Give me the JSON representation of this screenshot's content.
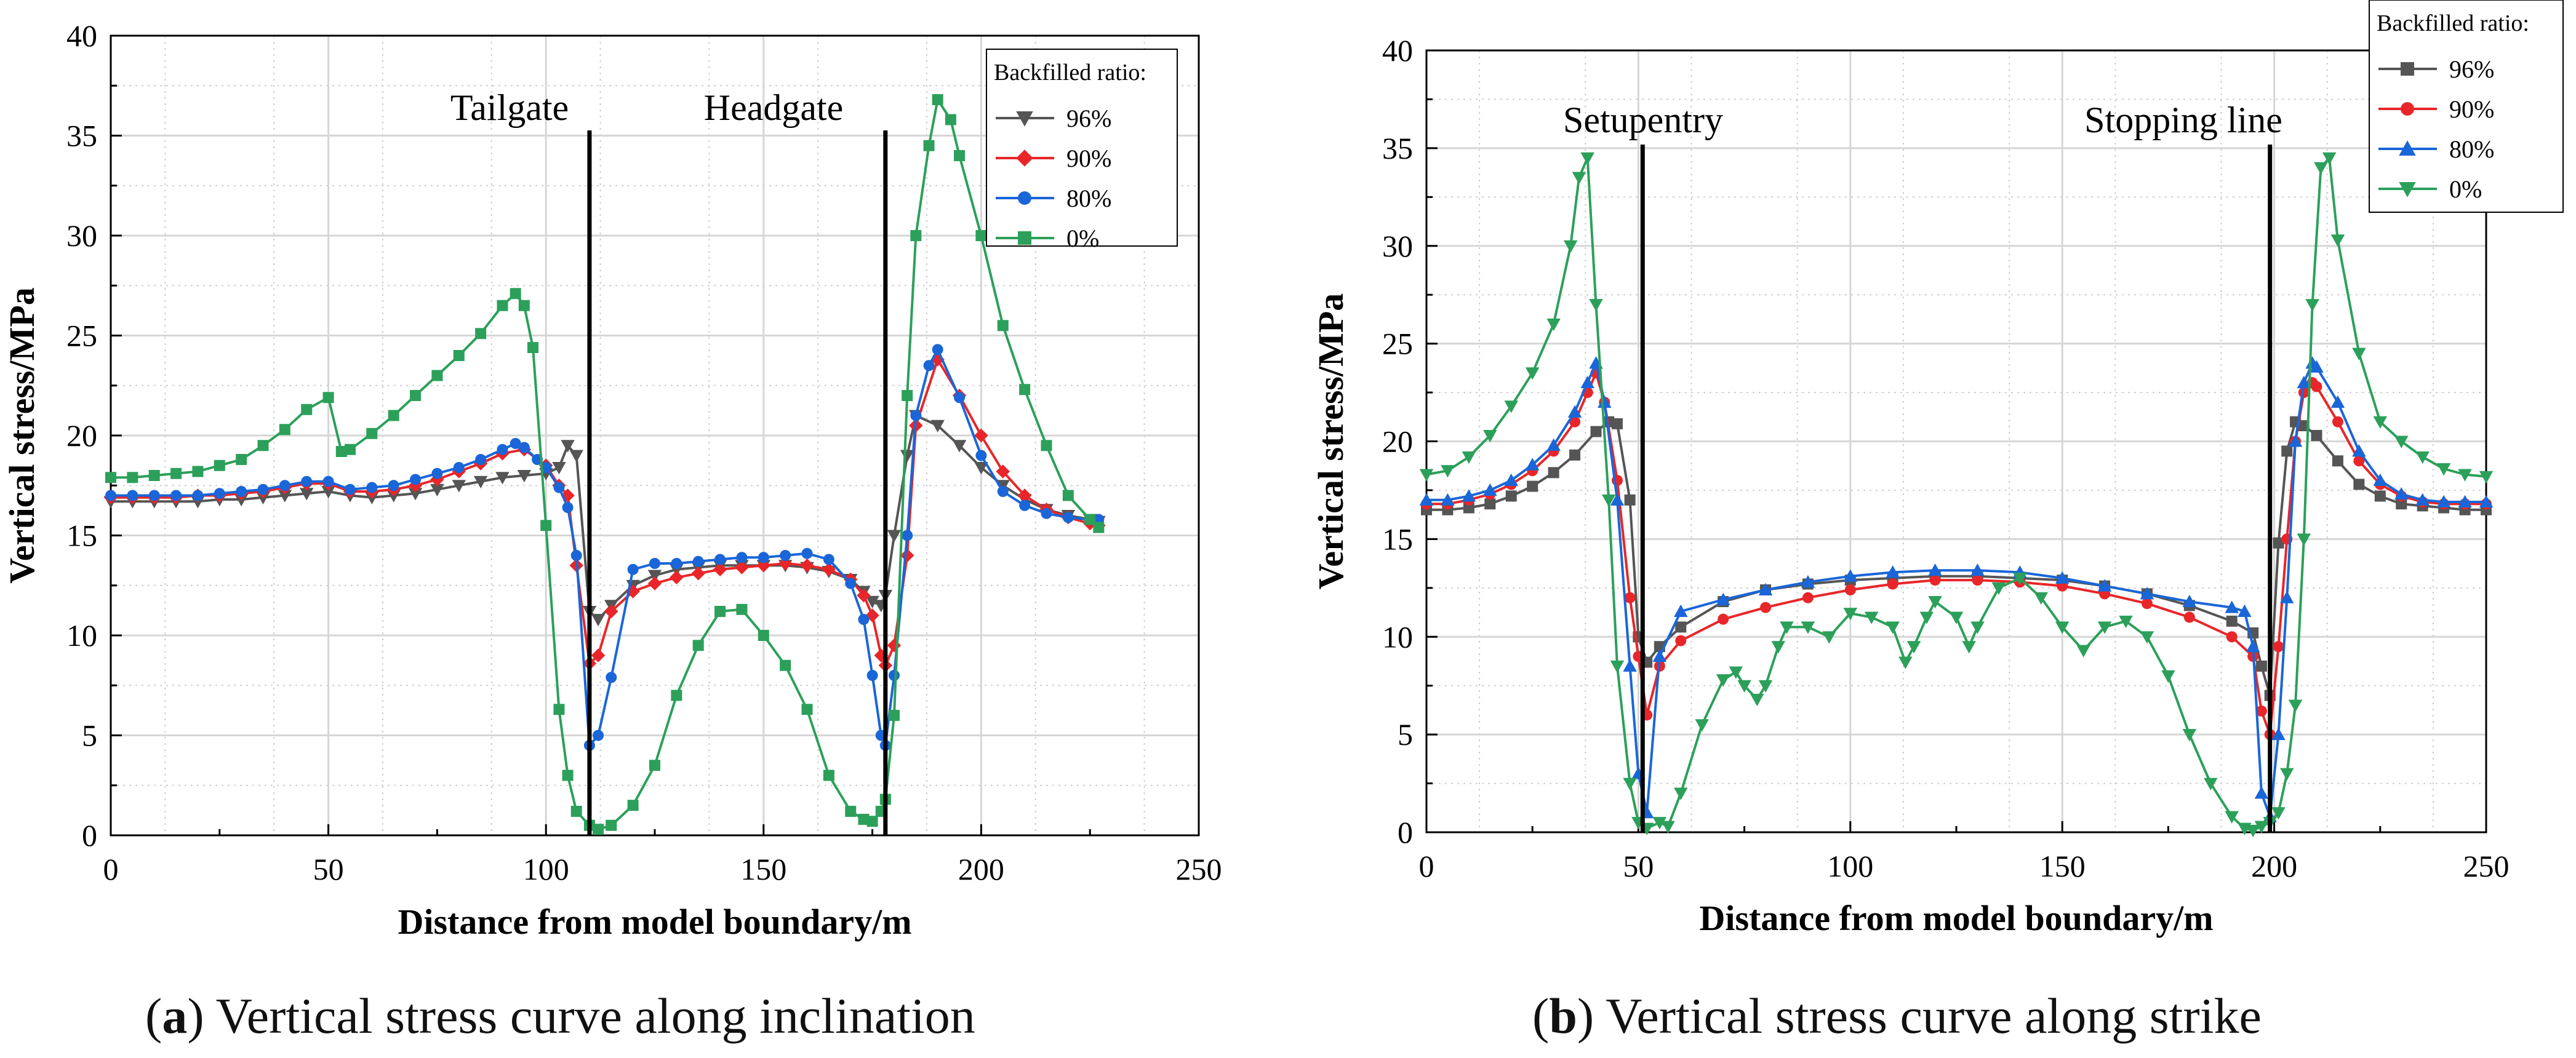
{
  "chart_data": [
    {
      "type": "line",
      "title": "",
      "xlabel": "Distance from model boundary/m",
      "ylabel": "Vertical stress/MPa",
      "xlim": [
        0,
        250
      ],
      "ylim": [
        0,
        40
      ],
      "xticks": [
        0,
        50,
        100,
        150,
        200,
        250
      ],
      "yticks": [
        0,
        5,
        10,
        15,
        20,
        25,
        30,
        35,
        40
      ],
      "grid": true,
      "legend_title": "Backfilled ratio:",
      "legend_position": "top-right",
      "annotations": [
        {
          "text": "Tailgate",
          "x": 110
        },
        {
          "text": "Headgate",
          "x": 178
        }
      ],
      "series": [
        {
          "name": "96%",
          "color": "#555555",
          "marker": "triangle-down",
          "x": [
            0,
            5,
            10,
            15,
            20,
            25,
            30,
            35,
            40,
            45,
            50,
            55,
            60,
            65,
            70,
            75,
            80,
            85,
            90,
            95,
            100,
            103,
            105,
            107,
            110,
            112,
            115,
            120,
            125,
            130,
            135,
            140,
            145,
            150,
            155,
            160,
            165,
            170,
            173,
            175,
            177,
            178,
            180,
            183,
            185,
            190,
            195,
            200,
            205,
            210,
            215,
            220,
            225,
            227
          ],
          "y": [
            16.7,
            16.7,
            16.7,
            16.7,
            16.7,
            16.8,
            16.8,
            16.9,
            17.0,
            17.1,
            17.2,
            17.0,
            16.9,
            17.0,
            17.1,
            17.3,
            17.5,
            17.7,
            17.9,
            18.0,
            18.1,
            18.4,
            19.5,
            19.0,
            11.2,
            10.8,
            11.5,
            12.5,
            13.0,
            13.3,
            13.4,
            13.5,
            13.5,
            13.5,
            13.5,
            13.4,
            13.2,
            12.8,
            12.2,
            11.7,
            11.5,
            12.0,
            15.0,
            19.0,
            21.0,
            20.5,
            19.5,
            18.4,
            17.5,
            16.8,
            16.3,
            16.0,
            15.8,
            15.7
          ]
        },
        {
          "name": "90%",
          "color": "#e8262a",
          "marker": "diamond",
          "x": [
            0,
            5,
            10,
            15,
            20,
            25,
            30,
            35,
            40,
            45,
            50,
            55,
            60,
            65,
            70,
            75,
            80,
            85,
            90,
            95,
            100,
            103,
            105,
            107,
            110,
            112,
            115,
            120,
            125,
            130,
            135,
            140,
            145,
            150,
            155,
            160,
            165,
            170,
            173,
            175,
            177,
            178,
            180,
            183,
            185,
            190,
            195,
            200,
            205,
            210,
            215,
            220,
            225,
            227
          ],
          "y": [
            16.9,
            16.9,
            16.9,
            16.9,
            17.0,
            17.0,
            17.1,
            17.2,
            17.4,
            17.6,
            17.6,
            17.2,
            17.2,
            17.3,
            17.5,
            17.8,
            18.2,
            18.6,
            19.1,
            19.3,
            18.5,
            17.5,
            17.0,
            13.5,
            8.6,
            9.0,
            11.2,
            12.2,
            12.6,
            12.9,
            13.1,
            13.3,
            13.4,
            13.5,
            13.6,
            13.5,
            13.3,
            12.8,
            12.0,
            11.0,
            9.0,
            8.5,
            9.5,
            14.0,
            20.5,
            23.8,
            22.0,
            20.0,
            18.2,
            17.0,
            16.3,
            15.9,
            15.6,
            15.5
          ]
        },
        {
          "name": "80%",
          "color": "#1a66d8",
          "marker": "circle",
          "x": [
            0,
            5,
            10,
            15,
            20,
            25,
            30,
            35,
            40,
            45,
            50,
            55,
            60,
            65,
            70,
            75,
            80,
            85,
            90,
            93,
            95,
            98,
            100,
            103,
            105,
            107,
            110,
            112,
            115,
            120,
            125,
            130,
            135,
            140,
            145,
            150,
            155,
            160,
            165,
            170,
            173,
            175,
            177,
            178,
            180,
            183,
            185,
            188,
            190,
            195,
            200,
            205,
            210,
            215,
            220,
            225,
            227
          ],
          "y": [
            17.0,
            17.0,
            17.0,
            17.0,
            17.0,
            17.1,
            17.2,
            17.3,
            17.5,
            17.7,
            17.7,
            17.3,
            17.4,
            17.5,
            17.8,
            18.1,
            18.4,
            18.8,
            19.3,
            19.6,
            19.4,
            18.8,
            18.4,
            17.4,
            16.4,
            14.0,
            4.5,
            5.0,
            7.9,
            13.3,
            13.6,
            13.6,
            13.7,
            13.8,
            13.9,
            13.9,
            14.0,
            14.1,
            13.8,
            12.6,
            10.8,
            8.0,
            5.0,
            4.5,
            8.0,
            15.0,
            21.0,
            23.5,
            24.3,
            21.9,
            19.0,
            17.2,
            16.5,
            16.1,
            15.9,
            15.8,
            15.8
          ]
        },
        {
          "name": "0%",
          "color": "#2ca05a",
          "marker": "square",
          "x": [
            0,
            5,
            10,
            15,
            20,
            25,
            30,
            35,
            40,
            45,
            50,
            53,
            55,
            60,
            65,
            70,
            75,
            80,
            85,
            90,
            93,
            95,
            97,
            100,
            103,
            105,
            107,
            110,
            112,
            115,
            120,
            125,
            130,
            135,
            140,
            145,
            150,
            155,
            160,
            165,
            170,
            173,
            175,
            177,
            178,
            180,
            183,
            185,
            188,
            190,
            193,
            195,
            200,
            205,
            210,
            215,
            220,
            225,
            227
          ],
          "y": [
            17.9,
            17.9,
            18.0,
            18.1,
            18.2,
            18.5,
            18.8,
            19.5,
            20.3,
            21.3,
            21.9,
            19.2,
            19.3,
            20.1,
            21.0,
            22.0,
            23.0,
            24.0,
            25.1,
            26.5,
            27.1,
            26.5,
            24.4,
            15.5,
            6.3,
            3.0,
            1.2,
            0.5,
            0.3,
            0.5,
            1.5,
            3.5,
            7.0,
            9.5,
            11.2,
            11.3,
            10.0,
            8.5,
            6.3,
            3.0,
            1.2,
            0.8,
            0.7,
            1.2,
            1.8,
            6.0,
            22.0,
            30.0,
            34.5,
            36.8,
            35.8,
            34.0,
            30.0,
            25.5,
            22.3,
            19.5,
            17.0,
            15.8,
            15.4
          ]
        }
      ]
    },
    {
      "type": "line",
      "title": "",
      "xlabel": "Distance from model boundary/m",
      "ylabel": "Vertical stress/MPa",
      "xlim": [
        0,
        250
      ],
      "ylim": [
        0,
        40
      ],
      "xticks": [
        0,
        50,
        100,
        150,
        200,
        250
      ],
      "yticks": [
        0,
        5,
        10,
        15,
        20,
        25,
        30,
        35,
        40
      ],
      "grid": true,
      "legend_title": "Backfilled ratio:",
      "legend_position": "top-right",
      "annotations": [
        {
          "text": "Setupentry",
          "x": 51
        },
        {
          "text": "Stopping line",
          "x": 199
        }
      ],
      "series": [
        {
          "name": "96%",
          "color": "#555555",
          "marker": "square",
          "x": [
            0,
            5,
            10,
            15,
            20,
            25,
            30,
            35,
            40,
            43,
            45,
            48,
            50,
            52,
            55,
            60,
            70,
            80,
            90,
            100,
            110,
            120,
            130,
            140,
            150,
            160,
            170,
            180,
            190,
            195,
            197,
            199,
            201,
            203,
            205,
            207,
            210,
            215,
            220,
            225,
            230,
            235,
            240,
            245,
            250
          ],
          "y": [
            16.5,
            16.5,
            16.6,
            16.8,
            17.2,
            17.7,
            18.4,
            19.3,
            20.5,
            21.0,
            20.9,
            17.0,
            10.0,
            8.7,
            9.5,
            10.5,
            11.8,
            12.4,
            12.7,
            12.9,
            13.0,
            13.1,
            13.1,
            13.0,
            12.9,
            12.6,
            12.2,
            11.6,
            10.8,
            10.2,
            8.5,
            7.0,
            14.8,
            19.5,
            21.0,
            20.8,
            20.3,
            19.0,
            17.8,
            17.2,
            16.8,
            16.7,
            16.6,
            16.5,
            16.5
          ]
        },
        {
          "name": "90%",
          "color": "#e8262a",
          "marker": "circle",
          "x": [
            0,
            5,
            10,
            15,
            20,
            25,
            30,
            35,
            38,
            40,
            42,
            45,
            48,
            50,
            52,
            55,
            60,
            70,
            80,
            90,
            100,
            110,
            120,
            130,
            140,
            150,
            160,
            170,
            180,
            190,
            195,
            197,
            199,
            201,
            203,
            205,
            207,
            209,
            210,
            215,
            220,
            225,
            230,
            235,
            240,
            245,
            250
          ],
          "y": [
            16.8,
            16.8,
            17.0,
            17.3,
            17.8,
            18.5,
            19.5,
            21.0,
            22.5,
            23.5,
            22.0,
            18.0,
            12.0,
            9.0,
            6.0,
            8.5,
            9.8,
            10.9,
            11.5,
            12.0,
            12.4,
            12.7,
            12.9,
            12.9,
            12.8,
            12.6,
            12.2,
            11.7,
            11.0,
            10.0,
            9.0,
            6.2,
            5.0,
            9.5,
            15.0,
            20.0,
            22.5,
            23.0,
            22.8,
            21.0,
            19.0,
            17.8,
            17.2,
            16.9,
            16.8,
            16.8,
            16.8
          ]
        },
        {
          "name": "80%",
          "color": "#1a66d8",
          "marker": "triangle-up",
          "x": [
            0,
            5,
            10,
            15,
            20,
            25,
            30,
            35,
            38,
            40,
            42,
            45,
            48,
            50,
            52,
            55,
            60,
            70,
            80,
            90,
            100,
            110,
            120,
            130,
            140,
            150,
            160,
            170,
            180,
            190,
            193,
            195,
            197,
            199,
            201,
            203,
            205,
            207,
            209,
            210,
            215,
            220,
            225,
            230,
            235,
            240,
            245,
            250
          ],
          "y": [
            17.0,
            17.0,
            17.2,
            17.5,
            18.0,
            18.8,
            19.8,
            21.5,
            23.0,
            24.0,
            22.0,
            17.0,
            8.5,
            3.0,
            1.0,
            9.0,
            11.3,
            11.9,
            12.4,
            12.8,
            13.1,
            13.3,
            13.4,
            13.4,
            13.3,
            13.0,
            12.6,
            12.2,
            11.8,
            11.5,
            11.3,
            9.5,
            2.0,
            0.8,
            5.0,
            12.0,
            20.0,
            23.0,
            24.0,
            23.8,
            22.0,
            19.5,
            18.0,
            17.3,
            17.0,
            16.9,
            16.9,
            16.9
          ]
        },
        {
          "name": "0%",
          "color": "#2ca05a",
          "marker": "triangle-down",
          "x": [
            0,
            5,
            10,
            15,
            20,
            25,
            30,
            34,
            36,
            38,
            40,
            43,
            45,
            48,
            50,
            52,
            55,
            57,
            60,
            65,
            70,
            73,
            75,
            78,
            80,
            83,
            85,
            90,
            95,
            100,
            105,
            110,
            113,
            115,
            118,
            120,
            125,
            128,
            130,
            135,
            140,
            145,
            150,
            155,
            160,
            165,
            170,
            175,
            180,
            185,
            190,
            193,
            195,
            197,
            199,
            201,
            203,
            205,
            207,
            209,
            211,
            213,
            215,
            220,
            225,
            230,
            235,
            240,
            245,
            250
          ],
          "y": [
            18.3,
            18.5,
            19.2,
            20.3,
            21.8,
            23.5,
            26.0,
            30.0,
            33.5,
            34.5,
            27.0,
            17.0,
            8.5,
            2.5,
            0.5,
            0.2,
            0.5,
            0.3,
            2.0,
            5.5,
            7.8,
            8.2,
            7.5,
            6.8,
            7.5,
            9.5,
            10.5,
            10.5,
            10.0,
            11.2,
            11.0,
            10.5,
            8.7,
            9.5,
            11.0,
            11.8,
            11.0,
            9.5,
            10.5,
            12.5,
            13.0,
            12.0,
            10.5,
            9.3,
            10.5,
            10.8,
            10.0,
            8.0,
            5.0,
            2.5,
            0.8,
            0.2,
            0.1,
            0.3,
            0.5,
            1.0,
            3.0,
            6.5,
            15.0,
            27.0,
            34.0,
            34.5,
            30.3,
            24.5,
            21.0,
            20.0,
            19.2,
            18.6,
            18.3,
            18.2
          ]
        }
      ]
    }
  ],
  "captions": [
    {
      "letter": "a",
      "text": " Vertical stress curve along inclination"
    },
    {
      "letter": "b",
      "text": " Vertical stress curve along strike"
    }
  ]
}
